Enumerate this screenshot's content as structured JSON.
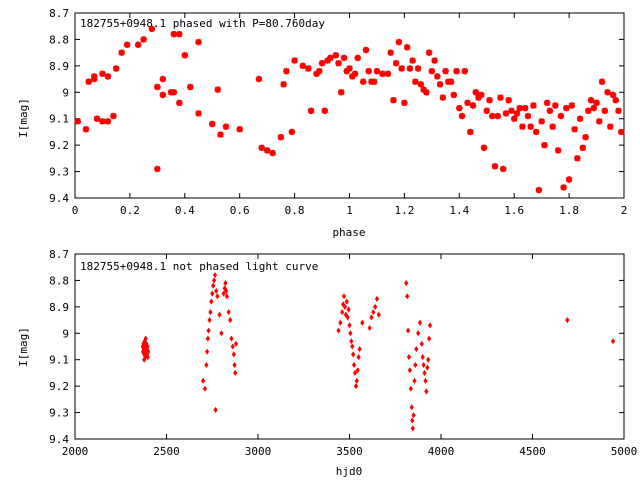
{
  "chart_data": [
    {
      "type": "scatter",
      "title": "182755+0948.1 phased with P=80.760day",
      "xlabel": "phase",
      "ylabel": "I[mag]",
      "xlim": [
        0,
        2
      ],
      "ylim": [
        8.7,
        9.4
      ],
      "y_inverted": true,
      "x_ticks": [
        "0",
        "0.2",
        "0.4",
        "0.6",
        "0.8",
        "1",
        "1.2",
        "1.4",
        "1.6",
        "1.8",
        "2"
      ],
      "y_ticks": [
        "8.7",
        "8.8",
        "8.9",
        "9",
        "9.1",
        "9.2",
        "9.3",
        "9.4"
      ],
      "marker_color": "#ff0000",
      "marker": "star",
      "series": [
        {
          "points": [
            [
              0.01,
              9.11
            ],
            [
              0.04,
              9.14
            ],
            [
              0.05,
              8.96
            ],
            [
              0.07,
              8.95
            ],
            [
              0.07,
              8.94
            ],
            [
              0.08,
              9.1
            ],
            [
              0.1,
              8.93
            ],
            [
              0.1,
              9.11
            ],
            [
              0.12,
              8.94
            ],
            [
              0.12,
              9.11
            ],
            [
              0.14,
              9.09
            ],
            [
              0.15,
              8.91
            ],
            [
              0.17,
              8.85
            ],
            [
              0.19,
              8.82
            ],
            [
              0.23,
              8.82
            ],
            [
              0.25,
              8.8
            ],
            [
              0.28,
              8.76
            ],
            [
              0.3,
              8.98
            ],
            [
              0.3,
              9.29
            ],
            [
              0.32,
              8.95
            ],
            [
              0.32,
              9.01
            ],
            [
              0.35,
              9.0
            ],
            [
              0.36,
              9.0
            ],
            [
              0.36,
              8.78
            ],
            [
              0.38,
              9.04
            ],
            [
              0.38,
              8.78
            ],
            [
              0.4,
              8.86
            ],
            [
              0.42,
              8.98
            ],
            [
              0.45,
              9.08
            ],
            [
              0.45,
              8.81
            ],
            [
              0.5,
              9.12
            ],
            [
              0.52,
              8.99
            ],
            [
              0.53,
              9.16
            ],
            [
              0.55,
              9.13
            ],
            [
              0.6,
              9.14
            ],
            [
              0.67,
              8.95
            ],
            [
              0.68,
              9.21
            ],
            [
              0.7,
              9.22
            ],
            [
              0.72,
              9.23
            ],
            [
              0.75,
              9.17
            ],
            [
              0.76,
              8.97
            ],
            [
              0.77,
              8.92
            ],
            [
              0.79,
              9.15
            ],
            [
              0.8,
              8.88
            ],
            [
              0.83,
              8.9
            ],
            [
              0.85,
              8.91
            ],
            [
              0.86,
              9.07
            ],
            [
              0.88,
              8.93
            ],
            [
              0.89,
              8.92
            ],
            [
              0.9,
              8.89
            ],
            [
              0.91,
              9.07
            ],
            [
              0.92,
              8.88
            ],
            [
              0.93,
              8.87
            ],
            [
              0.95,
              8.86
            ],
            [
              0.96,
              8.89
            ],
            [
              0.97,
              9.0
            ],
            [
              0.98,
              8.87
            ],
            [
              0.99,
              8.92
            ],
            [
              1.0,
              8.91
            ],
            [
              1.01,
              8.94
            ],
            [
              1.02,
              8.93
            ],
            [
              1.03,
              8.87
            ],
            [
              1.05,
              8.96
            ],
            [
              1.06,
              8.84
            ],
            [
              1.07,
              8.92
            ],
            [
              1.08,
              8.96
            ],
            [
              1.09,
              8.96
            ],
            [
              1.1,
              8.92
            ],
            [
              1.12,
              8.93
            ],
            [
              1.14,
              8.93
            ],
            [
              1.15,
              8.85
            ],
            [
              1.16,
              9.03
            ],
            [
              1.17,
              8.89
            ],
            [
              1.18,
              8.81
            ],
            [
              1.19,
              8.91
            ],
            [
              1.2,
              9.04
            ],
            [
              1.21,
              8.83
            ],
            [
              1.22,
              8.91
            ],
            [
              1.23,
              8.88
            ],
            [
              1.24,
              8.96
            ],
            [
              1.25,
              8.91
            ],
            [
              1.26,
              8.97
            ],
            [
              1.27,
              8.99
            ],
            [
              1.28,
              9.0
            ],
            [
              1.29,
              8.85
            ],
            [
              1.3,
              8.92
            ],
            [
              1.31,
              8.88
            ],
            [
              1.32,
              8.94
            ],
            [
              1.33,
              8.97
            ],
            [
              1.34,
              9.02
            ],
            [
              1.35,
              8.92
            ],
            [
              1.36,
              8.96
            ],
            [
              1.37,
              8.96
            ],
            [
              1.38,
              9.01
            ],
            [
              1.39,
              8.92
            ],
            [
              1.4,
              9.06
            ],
            [
              1.41,
              9.09
            ],
            [
              1.42,
              8.92
            ],
            [
              1.43,
              9.04
            ],
            [
              1.44,
              9.15
            ],
            [
              1.45,
              9.05
            ],
            [
              1.46,
              9.0
            ],
            [
              1.47,
              9.02
            ],
            [
              1.48,
              9.01
            ],
            [
              1.49,
              9.21
            ],
            [
              1.5,
              9.07
            ],
            [
              1.51,
              9.03
            ],
            [
              1.52,
              9.09
            ],
            [
              1.53,
              9.28
            ],
            [
              1.54,
              9.09
            ],
            [
              1.55,
              9.02
            ],
            [
              1.56,
              9.29
            ],
            [
              1.57,
              9.08
            ],
            [
              1.58,
              9.03
            ],
            [
              1.59,
              9.07
            ],
            [
              1.6,
              9.1
            ],
            [
              1.61,
              9.08
            ],
            [
              1.62,
              9.06
            ],
            [
              1.63,
              9.13
            ],
            [
              1.64,
              9.06
            ],
            [
              1.65,
              9.09
            ],
            [
              1.66,
              9.13
            ],
            [
              1.67,
              9.05
            ],
            [
              1.68,
              9.15
            ],
            [
              1.69,
              9.37
            ],
            [
              1.7,
              9.11
            ],
            [
              1.71,
              9.2
            ],
            [
              1.72,
              9.04
            ],
            [
              1.73,
              9.07
            ],
            [
              1.74,
              9.13
            ],
            [
              1.75,
              9.05
            ],
            [
              1.76,
              9.22
            ],
            [
              1.77,
              9.09
            ],
            [
              1.78,
              9.36
            ],
            [
              1.79,
              9.06
            ],
            [
              1.8,
              9.33
            ],
            [
              1.81,
              9.05
            ],
            [
              1.82,
              9.14
            ],
            [
              1.83,
              9.25
            ],
            [
              1.84,
              9.1
            ],
            [
              1.85,
              9.21
            ],
            [
              1.86,
              9.17
            ],
            [
              1.87,
              9.07
            ],
            [
              1.88,
              9.03
            ],
            [
              1.89,
              9.06
            ],
            [
              1.9,
              9.04
            ],
            [
              1.91,
              9.11
            ],
            [
              1.92,
              8.96
            ],
            [
              1.93,
              9.07
            ],
            [
              1.94,
              9.0
            ],
            [
              1.95,
              9.13
            ],
            [
              1.96,
              9.01
            ],
            [
              1.97,
              9.03
            ],
            [
              1.98,
              9.07
            ],
            [
              1.99,
              9.15
            ]
          ]
        }
      ]
    },
    {
      "type": "scatter",
      "title": "182755+0948.1 not phased light curve",
      "xlabel": "hjd0",
      "ylabel": "I[mag]",
      "xlim": [
        2000,
        5000
      ],
      "ylim": [
        8.7,
        9.4
      ],
      "y_inverted": true,
      "x_ticks": [
        "2000",
        "2500",
        "3000",
        "3500",
        "4000",
        "4500",
        "5000"
      ],
      "y_ticks": [
        "8.7",
        "8.8",
        "8.9",
        "9",
        "9.1",
        "9.2",
        "9.3",
        "9.4"
      ],
      "marker_color": "#ff0000",
      "marker": "diamond",
      "series": [
        {
          "points": [
            [
              2370,
              9.05
            ],
            [
              2372,
              9.07
            ],
            [
              2374,
              9.04
            ],
            [
              2376,
              9.06
            ],
            [
              2378,
              9.08
            ],
            [
              2380,
              9.03
            ],
            [
              2382,
              9.06
            ],
            [
              2384,
              9.09
            ],
            [
              2386,
              9.05
            ],
            [
              2388,
              9.07
            ],
            [
              2390,
              9.04
            ],
            [
              2392,
              9.08
            ],
            [
              2394,
              9.06
            ],
            [
              2396,
              9.05
            ],
            [
              2398,
              9.09
            ],
            [
              2400,
              9.07
            ],
            [
              2378,
              9.1
            ],
            [
              2386,
              9.02
            ],
            [
              2700,
              9.18
            ],
            [
              2710,
              9.21
            ],
            [
              2718,
              9.12
            ],
            [
              2722,
              9.07
            ],
            [
              2726,
              9.02
            ],
            [
              2730,
              8.99
            ],
            [
              2735,
              8.95
            ],
            [
              2740,
              8.92
            ],
            [
              2745,
              8.88
            ],
            [
              2750,
              8.85
            ],
            [
              2755,
              8.82
            ],
            [
              2760,
              8.8
            ],
            [
              2765,
              8.78
            ],
            [
              2768,
              9.29
            ],
            [
              2772,
              8.84
            ],
            [
              2778,
              8.86
            ],
            [
              2790,
              8.93
            ],
            [
              2800,
              9.0
            ],
            [
              2812,
              8.85
            ],
            [
              2818,
              8.83
            ],
            [
              2822,
              8.81
            ],
            [
              2826,
              8.84
            ],
            [
              2830,
              8.86
            ],
            [
              2840,
              8.92
            ],
            [
              2848,
              8.95
            ],
            [
              2855,
              9.02
            ],
            [
              2862,
              9.05
            ],
            [
              2868,
              9.08
            ],
            [
              2872,
              9.12
            ],
            [
              2876,
              9.15
            ],
            [
              2880,
              9.04
            ],
            [
              3440,
              8.99
            ],
            [
              3450,
              8.96
            ],
            [
              3460,
              8.92
            ],
            [
              3465,
              8.89
            ],
            [
              3470,
              8.86
            ],
            [
              3475,
              8.9
            ],
            [
              3480,
              8.93
            ],
            [
              3485,
              8.88
            ],
            [
              3490,
              8.94
            ],
            [
              3495,
              8.91
            ],
            [
              3500,
              8.97
            ],
            [
              3505,
              9.0
            ],
            [
              3510,
              9.03
            ],
            [
              3515,
              9.05
            ],
            [
              3520,
              9.08
            ],
            [
              3525,
              9.12
            ],
            [
              3530,
              9.15
            ],
            [
              3535,
              9.2
            ],
            [
              3540,
              9.18
            ],
            [
              3545,
              9.14
            ],
            [
              3550,
              9.09
            ],
            [
              3555,
              9.06
            ],
            [
              3570,
              8.96
            ],
            [
              3610,
              8.98
            ],
            [
              3620,
              8.94
            ],
            [
              3630,
              8.92
            ],
            [
              3640,
              8.9
            ],
            [
              3650,
              8.87
            ],
            [
              3660,
              8.93
            ],
            [
              3810,
              8.81
            ],
            [
              3815,
              8.86
            ],
            [
              3820,
              8.99
            ],
            [
              3825,
              9.09
            ],
            [
              3830,
              9.14
            ],
            [
              3835,
              9.21
            ],
            [
              3840,
              9.28
            ],
            [
              3843,
              9.33
            ],
            [
              3846,
              9.36
            ],
            [
              3850,
              9.31
            ],
            [
              3855,
              9.18
            ],
            [
              3860,
              9.12
            ],
            [
              3865,
              9.06
            ],
            [
              3875,
              9.0
            ],
            [
              3885,
              8.96
            ],
            [
              3895,
              9.04
            ],
            [
              3900,
              9.09
            ],
            [
              3905,
              9.12
            ],
            [
              3910,
              9.15
            ],
            [
              3915,
              9.18
            ],
            [
              3920,
              9.22
            ],
            [
              3925,
              9.13
            ],
            [
              3930,
              9.1
            ],
            [
              3935,
              9.02
            ],
            [
              3940,
              8.97
            ],
            [
              4690,
              8.95
            ],
            [
              4940,
              9.03
            ]
          ]
        }
      ]
    }
  ]
}
